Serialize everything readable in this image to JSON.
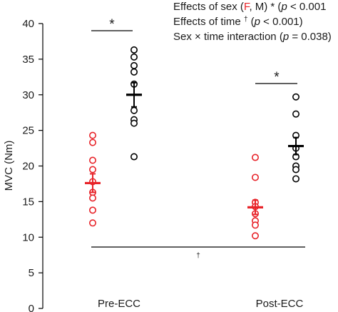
{
  "chart_data": {
    "type": "scatter",
    "ylabel": "MVC (Nm)",
    "ylim": [
      0,
      40
    ],
    "yticks": [
      "0",
      "5",
      "10",
      "15",
      "20",
      "25",
      "30",
      "35",
      "40"
    ],
    "categories": [
      "Pre-ECC",
      "Post-ECC"
    ],
    "series": [
      {
        "name": "F",
        "color": "#e8242a",
        "groups": [
          {
            "category": "Pre-ECC",
            "points": [
              24.3,
              23.3,
              20.8,
              19.5,
              17.8,
              16.3,
              15.5,
              13.8,
              12.0
            ],
            "mean": 17.6,
            "sem": 1.3
          },
          {
            "category": "Post-ECC",
            "points": [
              21.2,
              18.4,
              14.9,
              14.3,
              13.3,
              12.3,
              11.7,
              10.2
            ],
            "mean": 14.2,
            "sem": 1.0
          }
        ]
      },
      {
        "name": "M",
        "color": "#000000",
        "groups": [
          {
            "category": "Pre-ECC",
            "points": [
              36.3,
              35.3,
              34.1,
              33.2,
              31.5,
              27.8,
              26.5,
              26.0,
              21.3
            ],
            "mean": 30.0,
            "sem": 1.7
          },
          {
            "category": "Post-ECC",
            "points": [
              29.7,
              27.3,
              24.3,
              22.5,
              21.3,
              20.0,
              19.5,
              18.2
            ],
            "mean": 22.8,
            "sem": 1.2
          }
        ]
      }
    ],
    "annotations": {
      "pre_star": "*",
      "post_star": "*",
      "time_dagger": "†"
    },
    "legend": {
      "line1_pre": "Effects of sex (",
      "line1_f": "F",
      "line1_mid": ", M) * (",
      "line1_p": "p",
      "line1_post": " < 0.001",
      "line2_pre": "Effects of time ",
      "line2_dagger": "†",
      "line2_open": " (",
      "line2_p": "p",
      "line2_post": " < 0.001)",
      "line3_pre": "Sex × time interaction (",
      "line3_p": "p",
      "line3_post": " = 0.038)"
    }
  }
}
